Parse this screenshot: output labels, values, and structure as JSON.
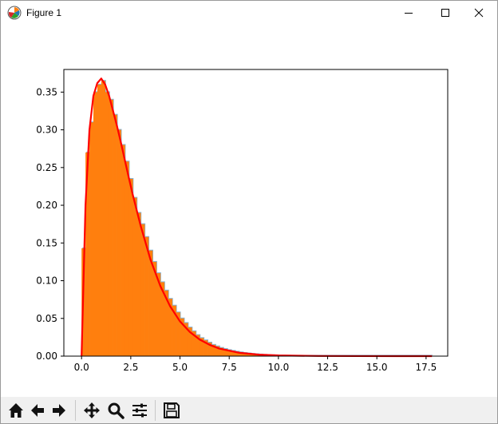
{
  "window": {
    "title": "Figure 1",
    "app_icon": "matplotlib-icon",
    "controls": [
      "minimize-icon",
      "maximize-icon",
      "close-icon"
    ]
  },
  "toolbar": {
    "buttons": [
      {
        "name": "home-button",
        "icon": "home-icon"
      },
      {
        "name": "back-button",
        "icon": "arrow-left-icon"
      },
      {
        "name": "forward-button",
        "icon": "arrow-right-icon"
      },
      {
        "name": "pan-button",
        "icon": "move-icon"
      },
      {
        "name": "zoom-button",
        "icon": "magnifier-icon"
      },
      {
        "name": "configure-subplots-button",
        "icon": "sliders-icon"
      },
      {
        "name": "save-button",
        "icon": "floppy-disk-icon"
      }
    ]
  },
  "chart_data": {
    "type": "bar",
    "title": "",
    "xlabel": "",
    "ylabel": "",
    "xlim": [
      -0.9,
      18.6
    ],
    "ylim": [
      0,
      0.38
    ],
    "xticks": [
      "0.0",
      "2.5",
      "5.0",
      "7.5",
      "10.0",
      "12.5",
      "15.0",
      "17.5"
    ],
    "yticks": [
      "0.00",
      "0.05",
      "0.10",
      "0.15",
      "0.20",
      "0.25",
      "0.30",
      "0.35"
    ],
    "grid": false,
    "legend": "none",
    "colors": {
      "histogram": "#ff7f0e",
      "histogram_shadow": "#1f77b4",
      "curve": "#ff0000"
    },
    "histogram": {
      "bin_width": 0.2,
      "bins_start": 0.0,
      "values": [
        0.143,
        0.27,
        0.31,
        0.35,
        0.36,
        0.365,
        0.35,
        0.34,
        0.32,
        0.3,
        0.28,
        0.258,
        0.235,
        0.21,
        0.19,
        0.175,
        0.158,
        0.14,
        0.125,
        0.11,
        0.098,
        0.087,
        0.076,
        0.067,
        0.058,
        0.05,
        0.044,
        0.038,
        0.033,
        0.028,
        0.024,
        0.021,
        0.018,
        0.015,
        0.013,
        0.011,
        0.0095,
        0.008,
        0.007,
        0.006,
        0.005,
        0.0042,
        0.0036,
        0.003,
        0.0026,
        0.0022,
        0.0018,
        0.0015,
        0.0013,
        0.0011,
        0.0009,
        0.0008,
        0.0007,
        0.0006,
        0.0005,
        0.0004,
        0.00035,
        0.0003,
        0.00025,
        0.0002,
        0.00018,
        0.00015,
        0.00013,
        0.00011,
        0.0001,
        9e-05,
        8e-05,
        7e-05,
        6e-05,
        5e-05,
        5e-05,
        4e-05,
        4e-05,
        3e-05,
        3e-05,
        3e-05,
        2e-05,
        2e-05,
        2e-05,
        2e-05,
        1e-05,
        1e-05,
        1e-05,
        1e-05,
        1e-05,
        1e-05,
        1e-05,
        1e-05,
        1e-05
      ]
    },
    "curve": {
      "x": [
        0.0,
        0.2,
        0.4,
        0.6,
        0.8,
        1.0,
        1.2,
        1.4,
        1.6,
        1.8,
        2.0,
        2.3,
        2.6,
        3.0,
        3.5,
        4.0,
        4.5,
        5.0,
        5.5,
        6.0,
        6.5,
        7.0,
        8.0,
        9.0,
        10.0,
        12.0,
        14.0,
        16.0,
        17.8
      ],
      "y": [
        0.0,
        0.2,
        0.3,
        0.345,
        0.362,
        0.368,
        0.36,
        0.345,
        0.325,
        0.305,
        0.283,
        0.248,
        0.214,
        0.173,
        0.128,
        0.093,
        0.066,
        0.046,
        0.032,
        0.022,
        0.015,
        0.01,
        0.0045,
        0.002,
        0.0009,
        0.0002,
        4e-05,
        1e-05,
        0.0
      ]
    }
  }
}
